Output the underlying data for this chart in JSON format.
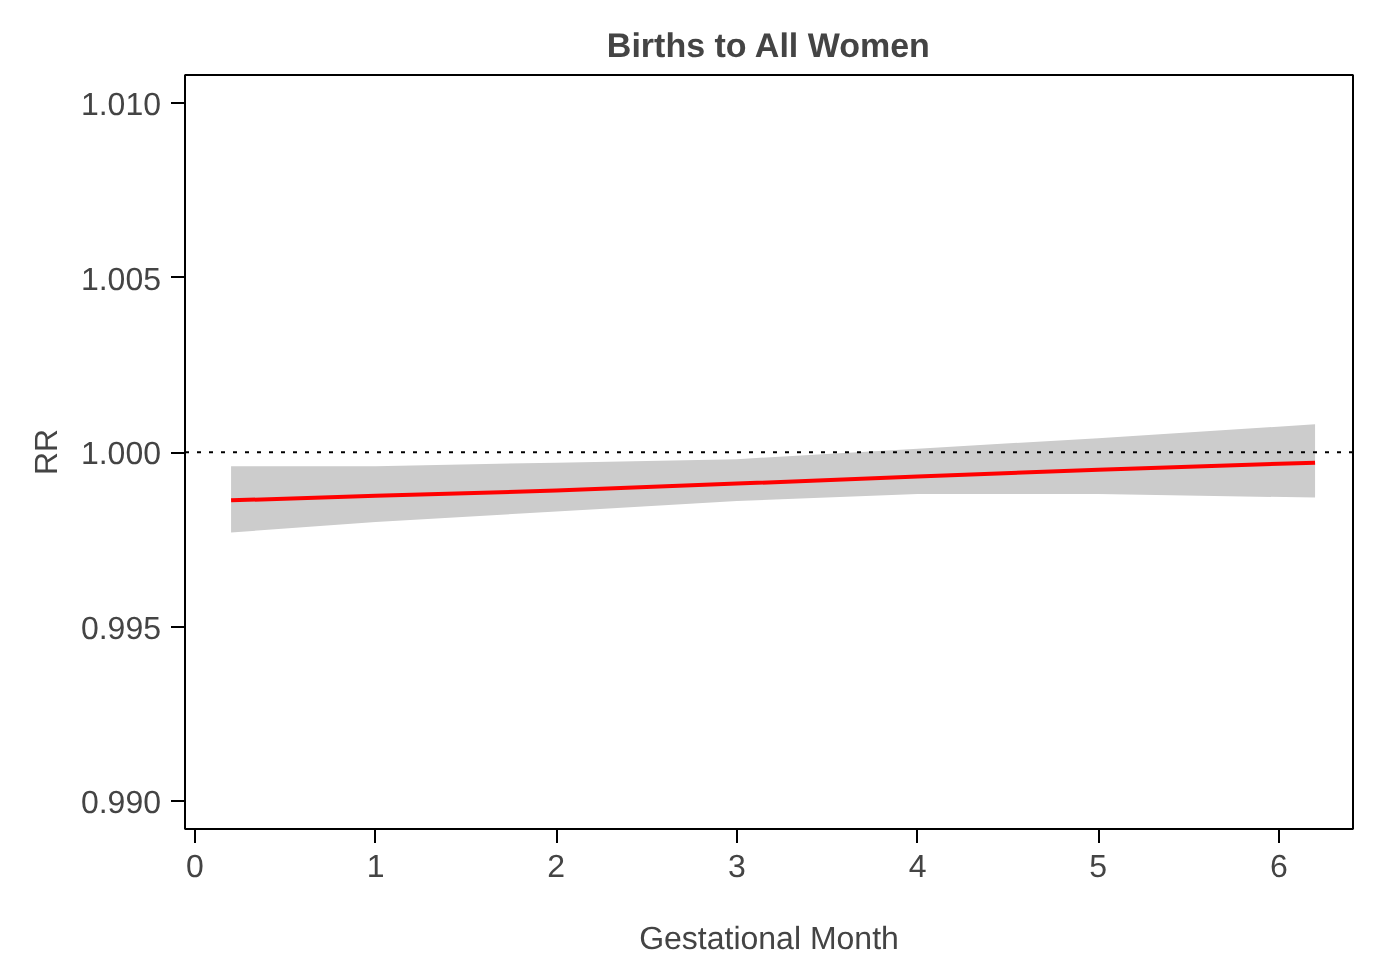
{
  "chart_data": {
    "type": "line",
    "title": "Births to All Women",
    "xlabel": "Gestational Month",
    "ylabel": "RR",
    "x": [
      0.2,
      1,
      2,
      3,
      4,
      5,
      6.2
    ],
    "series": [
      {
        "color": "#ff0000",
        "values": [
          0.99862,
          0.99875,
          0.9989,
          0.9991,
          0.9993,
          0.9995,
          0.9997
        ],
        "lower": [
          0.9977,
          0.998,
          0.9983,
          0.9986,
          0.9988,
          0.9988,
          0.9987
        ],
        "upper": [
          0.9996,
          0.9996,
          0.9997,
          0.9998,
          1.0001,
          1.0004,
          1.0008
        ]
      }
    ],
    "xlim": [
      -0.055,
      6.41
    ],
    "ylim": [
      0.98921,
      1.0108
    ],
    "xticks": [
      0,
      1,
      2,
      3,
      4,
      5,
      6
    ],
    "yticks": [
      {
        "value": 0.99,
        "label": "0.990"
      },
      {
        "value": 0.995,
        "label": "0.995"
      },
      {
        "value": 1.0,
        "label": "1.000"
      },
      {
        "value": 1.005,
        "label": "1.005"
      },
      {
        "value": 1.01,
        "label": "1.010"
      }
    ],
    "ref_lines": [
      {
        "axis": "y",
        "value": 1.0,
        "line_style": "dotted",
        "color": "#000000"
      }
    ],
    "grid": false
  }
}
